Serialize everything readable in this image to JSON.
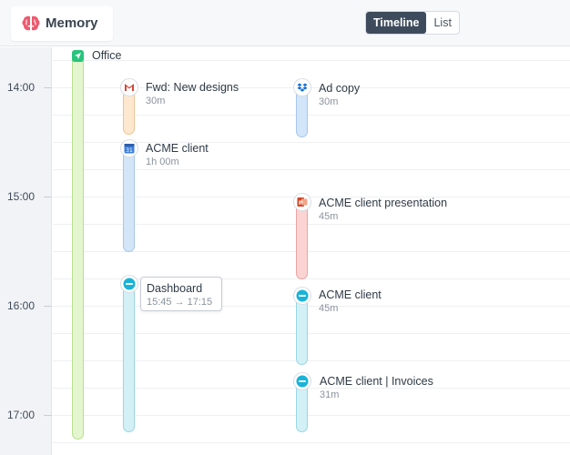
{
  "app": {
    "name": "Memory",
    "logo_icon": "brain-icon",
    "accent": "#ee5a6f"
  },
  "view_toggle": {
    "timeline_label": "Timeline",
    "list_label": "List",
    "active": "Timeline"
  },
  "timeline": {
    "hours": [
      "14:00",
      "15:00",
      "16:00",
      "17:00"
    ]
  },
  "location": {
    "label": "Office",
    "icon": "location-arrow-icon",
    "color": "#27c47d"
  },
  "events": [
    {
      "id": "fwd-new-designs",
      "title": "Fwd: New designs",
      "duration": "30m",
      "icon": "gmail-icon",
      "color": "orange"
    },
    {
      "id": "acme-client-calendar",
      "title": "ACME client",
      "duration": "1h 00m",
      "icon": "calendar-icon",
      "color": "blue"
    },
    {
      "id": "dashboard",
      "title": "Dashboard",
      "duration": "15:45 → 17:15",
      "icon": "browser-icon",
      "color": "cyan"
    },
    {
      "id": "ad-copy",
      "title": "Ad copy",
      "duration": "30m",
      "icon": "dropbox-icon",
      "color": "blue"
    },
    {
      "id": "acme-presentation",
      "title": "ACME client presentation",
      "duration": "45m",
      "icon": "powerpoint-icon",
      "color": "red"
    },
    {
      "id": "acme-client-browser",
      "title": "ACME client",
      "duration": "45m",
      "icon": "browser-icon",
      "color": "cyan"
    },
    {
      "id": "acme-invoices",
      "title": "ACME client | Invoices",
      "duration": "31m",
      "icon": "browser-icon",
      "color": "cyan"
    }
  ]
}
